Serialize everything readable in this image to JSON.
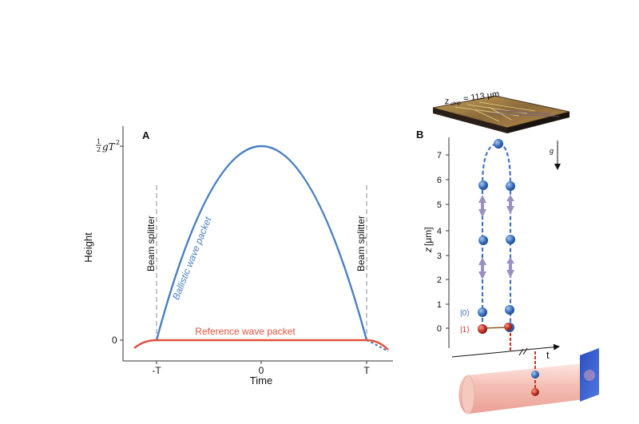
{
  "panel_a": {
    "label": "A",
    "ylabel": "Height",
    "xlabel": "Time",
    "ytick_top_frac": "1",
    "ytick_top_frac_den": "2",
    "ytick_top_expr": "gT",
    "ytick_top_sup": "2",
    "ytick_zero": "0",
    "xticks": [
      "-T",
      "0",
      "T"
    ],
    "beam_splitter_left": "Beam splitter",
    "beam_splitter_right": "Beam splitter",
    "ballistic_label": "Ballistic wave packet",
    "reference_label": "Reference wave packet",
    "colors": {
      "ballistic": "#4a7fc1",
      "reference": "#e0533d",
      "splitter": "#b5b5b5"
    }
  },
  "panel_b": {
    "label": "B",
    "ylabel_main": "z",
    "ylabel_unit": "[μm]",
    "yticks": [
      "0",
      "1",
      "2",
      "3",
      "4",
      "5",
      "6",
      "7"
    ],
    "gravity_label": "g",
    "time_label": "t",
    "chip_label_main": "z",
    "chip_label_sub": "chip",
    "chip_label_rest": "≈ 113 μm",
    "state0": "|0⟩",
    "state1": "|1⟩",
    "colors": {
      "blue": "#3f74c2",
      "red": "#c8362a",
      "arrow": "#9b8fc4"
    }
  }
}
